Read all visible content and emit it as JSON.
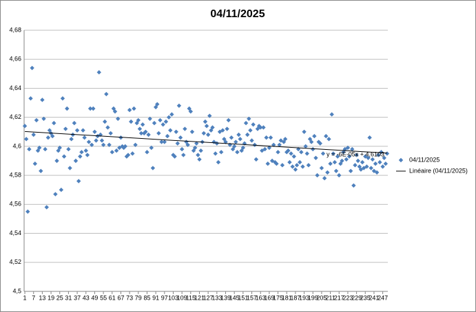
{
  "chart_data": {
    "type": "scatter",
    "title": "04/11/2025",
    "xlim": [
      0.5,
      250.5
    ],
    "xticks": [
      1,
      7,
      13,
      19,
      25,
      31,
      37,
      43,
      49,
      55,
      61,
      67,
      73,
      79,
      85,
      91,
      97,
      103,
      109,
      115,
      121,
      127,
      133,
      139,
      145,
      151,
      157,
      163,
      169,
      175,
      181,
      187,
      193,
      199,
      205,
      211,
      217,
      223,
      229,
      235,
      241,
      247
    ],
    "ylim": [
      4.5,
      4.68
    ],
    "yticks": [
      {
        "value": 4.5,
        "label": "4,5"
      },
      {
        "value": 4.52,
        "label": "4,52"
      },
      {
        "value": 4.54,
        "label": "4,54"
      },
      {
        "value": 4.56,
        "label": "4,56"
      },
      {
        "value": 4.58,
        "label": "4,58"
      },
      {
        "value": 4.6,
        "label": "4,6"
      },
      {
        "value": 4.62,
        "label": "4,62"
      },
      {
        "value": 4.64,
        "label": "4,64"
      },
      {
        "value": 4.66,
        "label": "4,66"
      },
      {
        "value": 4.68,
        "label": "4,68"
      }
    ],
    "grid": true,
    "legend": "right",
    "annotation": "y = -6E-05x + 4,6103",
    "series": [
      {
        "name": "04/11/2025",
        "color": "#4f81bd",
        "marker": "diamond",
        "x": [
          1,
          2,
          3,
          4,
          5,
          6,
          7,
          8,
          9,
          10,
          11,
          12,
          13,
          14,
          15,
          16,
          17,
          18,
          19,
          20,
          21,
          22,
          23,
          24,
          25,
          26,
          27,
          28,
          29,
          30,
          31,
          32,
          33,
          34,
          35,
          36,
          37,
          38,
          39,
          40,
          41,
          42,
          43,
          44,
          45,
          46,
          47,
          48,
          49,
          50,
          51,
          52,
          53,
          54,
          55,
          56,
          57,
          58,
          59,
          60,
          61,
          62,
          63,
          64,
          65,
          66,
          67,
          68,
          69,
          70,
          71,
          72,
          73,
          74,
          75,
          76,
          77,
          78,
          79,
          80,
          81,
          82,
          83,
          84,
          85,
          86,
          87,
          88,
          89,
          90,
          91,
          92,
          93,
          94,
          95,
          96,
          97,
          98,
          99,
          100,
          101,
          102,
          103,
          104,
          105,
          106,
          107,
          108,
          109,
          110,
          111,
          112,
          113,
          114,
          115,
          116,
          117,
          118,
          119,
          120,
          121,
          122,
          123,
          124,
          125,
          126,
          127,
          128,
          129,
          130,
          131,
          132,
          133,
          134,
          135,
          136,
          137,
          138,
          139,
          140,
          141,
          142,
          143,
          144,
          145,
          146,
          147,
          148,
          149,
          150,
          151,
          152,
          153,
          154,
          155,
          156,
          157,
          158,
          159,
          160,
          161,
          162,
          163,
          164,
          165,
          166,
          167,
          168,
          169,
          170,
          171,
          172,
          173,
          174,
          175,
          176,
          177,
          178,
          179,
          180,
          181,
          182,
          183,
          184,
          185,
          186,
          187,
          188,
          189,
          190,
          191,
          192,
          193,
          194,
          195,
          196,
          197,
          198,
          199,
          200,
          201,
          202,
          203,
          204,
          205,
          206,
          207,
          208,
          209,
          210,
          211,
          212,
          213,
          214,
          215,
          216,
          217,
          218,
          219,
          220,
          221,
          222,
          223,
          224,
          225,
          226,
          227,
          228,
          229,
          230,
          231,
          232,
          233,
          234,
          235,
          236,
          237,
          238,
          239,
          240,
          241,
          242,
          243,
          244,
          245,
          246,
          247,
          248,
          249,
          250
        ],
        "values": [
          4.614,
          4.605,
          4.555,
          4.598,
          4.633,
          4.654,
          4.608,
          4.588,
          4.618,
          4.597,
          4.599,
          4.583,
          4.632,
          4.619,
          4.598,
          4.558,
          4.606,
          4.611,
          4.609,
          4.607,
          4.616,
          4.567,
          4.59,
          4.597,
          4.599,
          4.57,
          4.633,
          4.593,
          4.612,
          4.626,
          4.598,
          4.585,
          4.605,
          4.608,
          4.616,
          4.59,
          4.611,
          4.576,
          4.593,
          4.596,
          4.611,
          4.606,
          4.597,
          4.594,
          4.603,
          4.626,
          4.601,
          4.626,
          4.61,
          4.604,
          4.607,
          4.651,
          4.608,
          4.604,
          4.601,
          4.617,
          4.636,
          4.613,
          4.601,
          4.609,
          4.596,
          4.626,
          4.624,
          4.597,
          4.619,
          4.599,
          4.606,
          4.6,
          4.599,
          4.6,
          4.593,
          4.594,
          4.625,
          4.617,
          4.595,
          4.626,
          4.601,
          4.616,
          4.618,
          4.612,
          4.609,
          4.615,
          4.609,
          4.61,
          4.596,
          4.608,
          4.619,
          4.599,
          4.585,
          4.616,
          4.627,
          4.629,
          4.609,
          4.618,
          4.603,
          4.615,
          4.603,
          4.617,
          4.607,
          4.62,
          4.611,
          4.622,
          4.594,
          4.593,
          4.61,
          4.602,
          4.628,
          4.606,
          4.598,
          4.594,
          4.612,
          4.603,
          4.601,
          4.626,
          4.624,
          4.61,
          4.597,
          4.599,
          4.602,
          4.594,
          4.591,
          4.597,
          4.603,
          4.609,
          4.617,
          4.614,
          4.608,
          4.621,
          4.611,
          4.613,
          4.603,
          4.595,
          4.602,
          4.589,
          4.61,
          4.596,
          4.611,
          4.605,
          4.603,
          4.612,
          4.618,
          4.601,
          4.606,
          4.598,
          4.6,
          4.603,
          4.596,
          4.608,
          4.605,
          4.597,
          4.599,
          4.602,
          4.616,
          4.608,
          4.619,
          4.611,
          4.604,
          4.615,
          4.601,
          4.591,
          4.612,
          4.614,
          4.613,
          4.597,
          4.613,
          4.598,
          4.606,
          4.588,
          4.599,
          4.606,
          4.59,
          4.601,
          4.589,
          4.588,
          4.596,
          4.601,
          4.604,
          4.587,
          4.603,
          4.605,
          4.596,
          4.597,
          4.589,
          4.595,
          4.586,
          4.593,
          4.584,
          4.587,
          4.598,
          4.589,
          4.596,
          4.586,
          4.61,
          4.6,
          4.595,
          4.587,
          4.605,
          4.603,
          4.598,
          4.607,
          4.592,
          4.58,
          4.603,
          4.602,
          4.585,
          4.595,
          4.578,
          4.607,
          4.582,
          4.605,
          4.588,
          4.622,
          4.595,
          4.589,
          4.583,
          4.593,
          4.58,
          4.588,
          4.59,
          4.596,
          4.598,
          4.591,
          4.599,
          4.593,
          4.583,
          4.598,
          4.573,
          4.587,
          4.594,
          4.59,
          4.586,
          4.584,
          4.589,
          4.585,
          4.593,
          4.586,
          4.592,
          4.606,
          4.585,
          4.591,
          4.583,
          4.588,
          4.582,
          4.594,
          4.589,
          4.596,
          4.586,
          4.592,
          4.588,
          4.595
        ]
      },
      {
        "name": "Linéaire (04/11/2025)",
        "color": "#000000",
        "marker": "line",
        "x": [
          1,
          250
        ],
        "values": [
          4.6102,
          4.5953
        ]
      }
    ]
  }
}
